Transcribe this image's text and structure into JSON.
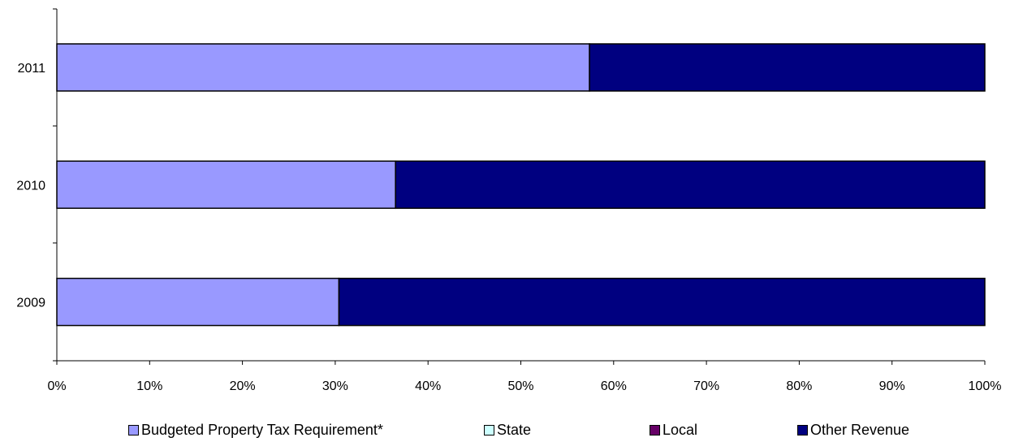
{
  "chart_data": {
    "type": "bar",
    "orientation": "horizontal",
    "stacked": true,
    "percent_stacked": true,
    "categories": [
      "2011",
      "2010",
      "2009"
    ],
    "series": [
      {
        "name": "Budgeted Property Tax Requirement*",
        "color": "#9999ff",
        "values": [
          57.4,
          36.5,
          30.4
        ]
      },
      {
        "name": "State",
        "color": "#ccffff",
        "values": [
          0,
          0,
          0
        ]
      },
      {
        "name": "Local",
        "color": "#660066",
        "values": [
          0,
          0,
          0
        ]
      },
      {
        "name": "Other Revenue",
        "color": "#000080",
        "values": [
          42.6,
          63.5,
          69.6
        ]
      }
    ],
    "x_ticks": [
      "0%",
      "10%",
      "20%",
      "30%",
      "40%",
      "50%",
      "60%",
      "70%",
      "80%",
      "90%",
      "100%"
    ],
    "xlim": [
      0,
      100
    ],
    "grid": false,
    "legend_position": "bottom"
  }
}
